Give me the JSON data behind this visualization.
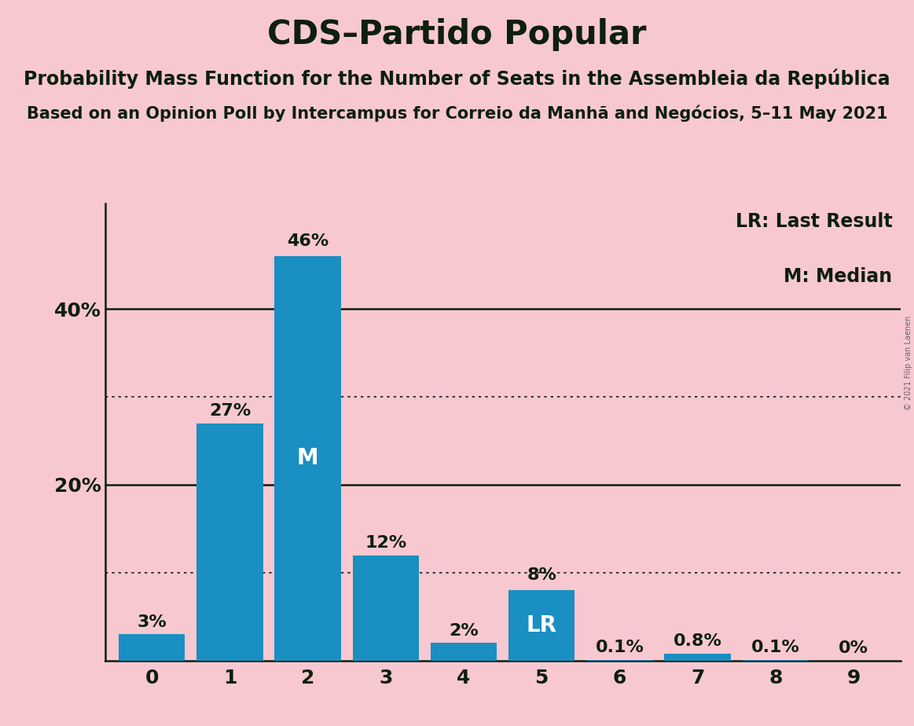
{
  "title": "CDS–Partido Popular",
  "subtitle1": "Probability Mass Function for the Number of Seats in the Assembleia da República",
  "subtitle2": "Based on an Opinion Poll by Intercampus for Correio da Manhã and Negócios, 5–11 May 2021",
  "copyright": "© 2021 Filip van Laenen",
  "categories": [
    0,
    1,
    2,
    3,
    4,
    5,
    6,
    7,
    8,
    9
  ],
  "values": [
    3,
    27,
    46,
    12,
    2,
    8,
    0.1,
    0.8,
    0.1,
    0
  ],
  "labels": [
    "3%",
    "27%",
    "46%",
    "12%",
    "2%",
    "8%",
    "0.1%",
    "0.8%",
    "0.1%",
    "0%"
  ],
  "bar_color": "#1a8fc1",
  "background_color": "#f8c8d0",
  "text_color": "#0d1f0d",
  "median_bar": 2,
  "lr_bar": 5,
  "ylim": [
    0,
    52
  ],
  "yticks": [
    20,
    40
  ],
  "ytick_labels": [
    "20%",
    "40%"
  ],
  "dotted_yticks": [
    10,
    30
  ],
  "solid_yticks": [
    20,
    40
  ],
  "legend_lr": "LR: Last Result",
  "legend_m": "M: Median",
  "title_fontsize": 30,
  "subtitle1_fontsize": 17,
  "subtitle2_fontsize": 15,
  "axis_label_fontsize": 18,
  "bar_label_fontsize": 16,
  "bar_label_inside_fontsize": 20,
  "legend_fontsize": 17
}
